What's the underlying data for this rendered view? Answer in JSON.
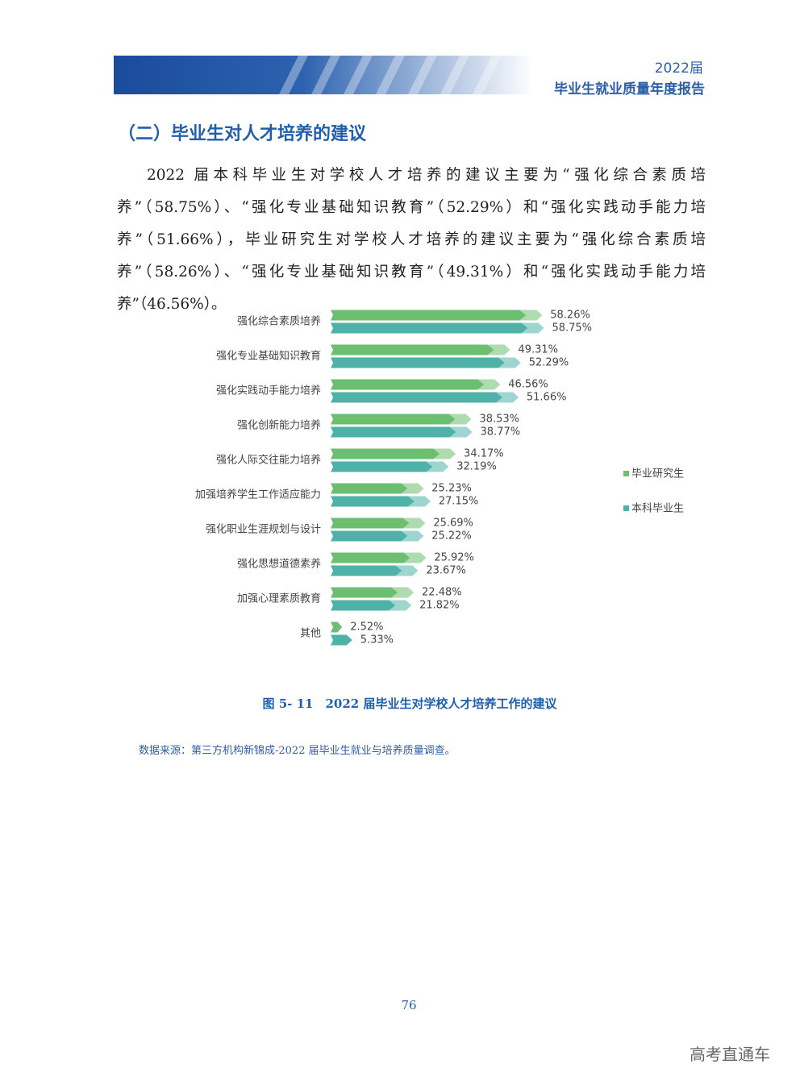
{
  "header": {
    "year": "2022届",
    "title": "毕业生就业质量年度报告"
  },
  "section_title": "（二）毕业生对人才培养的建议",
  "paragraph": "2022 届本科毕业生对学校人才培养的建议主要为“强化综合素质培养”（58.75%）、“强化专业基础知识教育”（52.29%）和“强化实践动手能力培养”（51.66%），毕业研究生对学校人才培养的建议主要为“强化综合素质培养”（58.26%）、“强化专业基础知识教育”（49.31%）和“强化实践动手能力培养”（46.56%）。",
  "chart_data": {
    "type": "bar",
    "orientation": "horizontal",
    "categories": [
      "强化综合素质培养",
      "强化专业基础知识教育",
      "强化实践动手能力培养",
      "强化创新能力培养",
      "强化人际交往能力培养",
      "加强培养学生工作适应能力",
      "强化职业生涯规划与设计",
      "强化思想道德素养",
      "加强心理素质教育",
      "其他"
    ],
    "series": [
      {
        "name": "毕业研究生",
        "color": "#6cbf70",
        "values": [
          58.26,
          49.31,
          46.56,
          38.53,
          34.17,
          25.23,
          25.69,
          25.92,
          22.48,
          2.52
        ],
        "value_labels": [
          "58.26%",
          "49.31%",
          "46.56%",
          "38.53%",
          "34.17%",
          "25.23%",
          "25.69%",
          "25.92%",
          "22.48%",
          "2.52%"
        ]
      },
      {
        "name": "本科毕业生",
        "color": "#4fb2a8",
        "values": [
          58.75,
          52.29,
          51.66,
          38.77,
          32.19,
          27.15,
          25.22,
          23.67,
          21.82,
          5.33
        ],
        "value_labels": [
          "58.75%",
          "52.29%",
          "51.66%",
          "38.77%",
          "32.19%",
          "27.15%",
          "25.22%",
          "23.67%",
          "21.82%",
          "5.33%"
        ]
      }
    ],
    "legend": "right"
  },
  "caption": "图 5- 11　2022 届毕业生对学校人才培养工作的建议",
  "source": "数据来源：第三方机构新锦成-2022 届毕业生就业与培养质量调查。",
  "page_number": "76",
  "watermark": "高考直通车"
}
